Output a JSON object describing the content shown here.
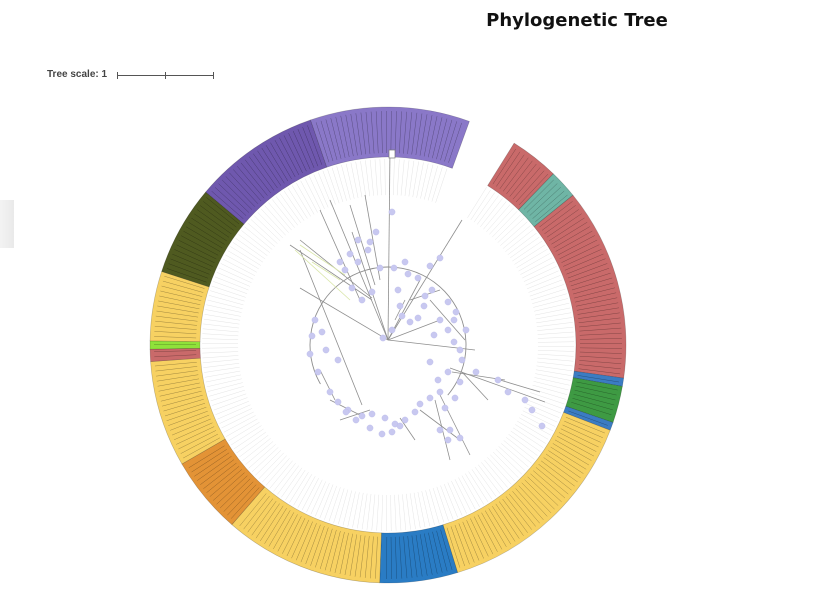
{
  "title": "Phylogenetic Tree",
  "tree_scale": {
    "label": "Tree scale: 1"
  },
  "ring": {
    "gap_deg": [
      290,
      302
    ],
    "segments": [
      {
        "start": 302,
        "end": 314,
        "color": "#c96a6a"
      },
      {
        "start": 314,
        "end": 321,
        "color": "#6fb5a5"
      },
      {
        "start": 321,
        "end": 368,
        "color": "#c96a6a"
      },
      {
        "start": 368,
        "end": 370,
        "color": "#3b7cc2"
      },
      {
        "start": 370,
        "end": 379,
        "color": "#3e9a43"
      },
      {
        "start": 379,
        "end": 381,
        "color": "#3b7cc2"
      },
      {
        "start": 381,
        "end": 433,
        "color": "#f7d162"
      },
      {
        "start": 433,
        "end": 452,
        "color": "#2a7cc4"
      },
      {
        "start": 452,
        "end": 491,
        "color": "#f7d162"
      },
      {
        "start": 491,
        "end": 510,
        "color": "#e39336"
      },
      {
        "start": 510,
        "end": 536,
        "color": "#f7d162"
      },
      {
        "start": 536,
        "end": 539,
        "color": "#c96a6a"
      },
      {
        "start": 539,
        "end": 541,
        "color": "#8fe23a"
      },
      {
        "start": 541,
        "end": 558,
        "color": "#f7d162"
      },
      {
        "start": 558,
        "end": 580,
        "color": "#4f5a20"
      },
      {
        "start": 580,
        "end": 611,
        "color": "#6f58ae"
      },
      {
        "start": 611,
        "end": 650,
        "color": "#8a78c8"
      }
    ]
  },
  "colors": {
    "branch": "#8e8e8e",
    "node": "#c8c8f0",
    "leaf_line": "#e4e4e4"
  }
}
